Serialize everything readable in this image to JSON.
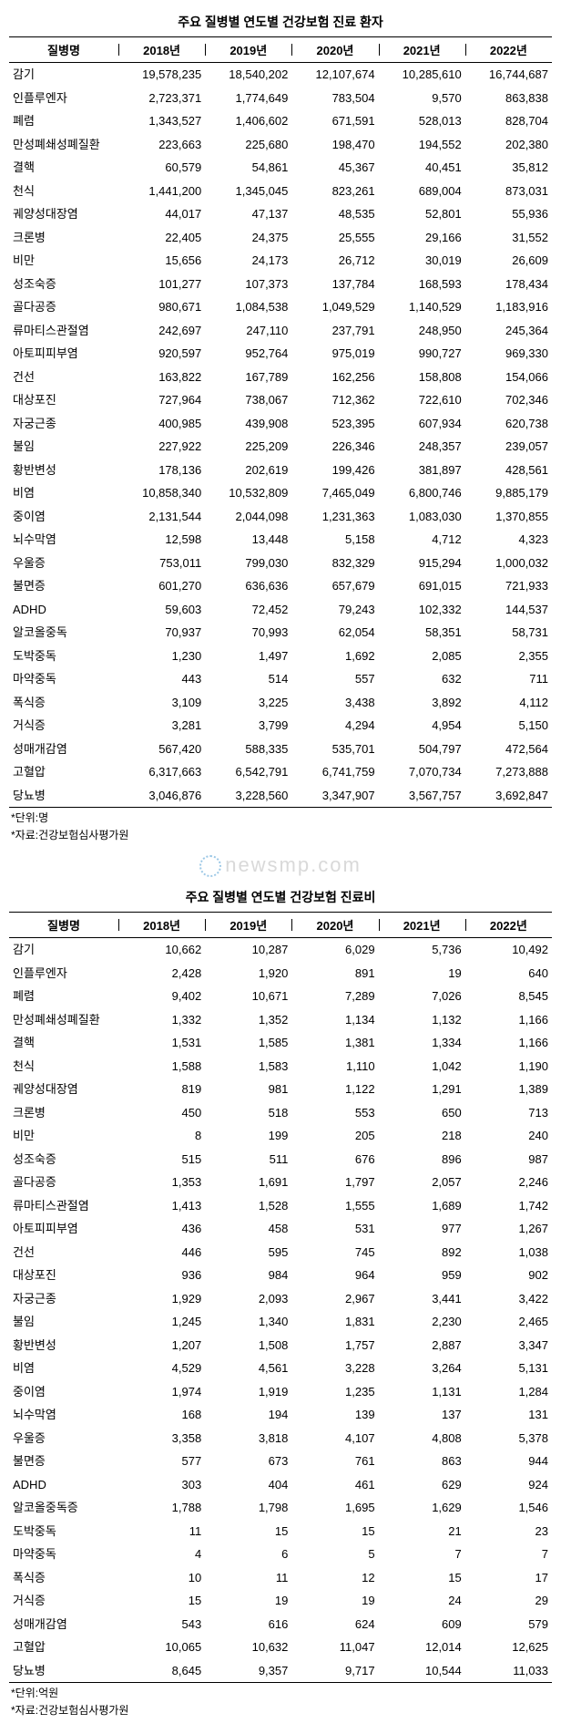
{
  "watermark_text": "newsmp.com",
  "table1": {
    "title": "주요 질병별 연도별 건강보험 진료 환자",
    "columns": [
      "질병명",
      "2018년",
      "2019년",
      "2020년",
      "2021년",
      "2022년"
    ],
    "col_widths": [
      "120px",
      "auto",
      "auto",
      "auto",
      "auto",
      "auto"
    ],
    "header_border_color": "#000000",
    "rows": [
      [
        "감기",
        "19,578,235",
        "18,540,202",
        "12,107,674",
        "10,285,610",
        "16,744,687"
      ],
      [
        "인플루엔자",
        "2,723,371",
        "1,774,649",
        "783,504",
        "9,570",
        "863,838"
      ],
      [
        "폐렴",
        "1,343,527",
        "1,406,602",
        "671,591",
        "528,013",
        "828,704"
      ],
      [
        "만성폐쇄성폐질환",
        "223,663",
        "225,680",
        "198,470",
        "194,552",
        "202,380"
      ],
      [
        "결핵",
        "60,579",
        "54,861",
        "45,367",
        "40,451",
        "35,812"
      ],
      [
        "천식",
        "1,441,200",
        "1,345,045",
        "823,261",
        "689,004",
        "873,031"
      ],
      [
        "궤양성대장염",
        "44,017",
        "47,137",
        "48,535",
        "52,801",
        "55,936"
      ],
      [
        "크론병",
        "22,405",
        "24,375",
        "25,555",
        "29,166",
        "31,552"
      ],
      [
        "비만",
        "15,656",
        "24,173",
        "26,712",
        "30,019",
        "26,609"
      ],
      [
        "성조숙증",
        "101,277",
        "107,373",
        "137,784",
        "168,593",
        "178,434"
      ],
      [
        "골다공증",
        "980,671",
        "1,084,538",
        "1,049,529",
        "1,140,529",
        "1,183,916"
      ],
      [
        "류마티스관절염",
        "242,697",
        "247,110",
        "237,791",
        "248,950",
        "245,364"
      ],
      [
        "아토피피부염",
        "920,597",
        "952,764",
        "975,019",
        "990,727",
        "969,330"
      ],
      [
        "건선",
        "163,822",
        "167,789",
        "162,256",
        "158,808",
        "154,066"
      ],
      [
        "대상포진",
        "727,964",
        "738,067",
        "712,362",
        "722,610",
        "702,346"
      ],
      [
        "자궁근종",
        "400,985",
        "439,908",
        "523,395",
        "607,934",
        "620,738"
      ],
      [
        "불임",
        "227,922",
        "225,209",
        "226,346",
        "248,357",
        "239,057"
      ],
      [
        "황반변성",
        "178,136",
        "202,619",
        "199,426",
        "381,897",
        "428,561"
      ],
      [
        "비염",
        "10,858,340",
        "10,532,809",
        "7,465,049",
        "6,800,746",
        "9,885,179"
      ],
      [
        "중이염",
        "2,131,544",
        "2,044,098",
        "1,231,363",
        "1,083,030",
        "1,370,855"
      ],
      [
        "뇌수막염",
        "12,598",
        "13,448",
        "5,158",
        "4,712",
        "4,323"
      ],
      [
        "우울증",
        "753,011",
        "799,030",
        "832,329",
        "915,294",
        "1,000,032"
      ],
      [
        "불면증",
        "601,270",
        "636,636",
        "657,679",
        "691,015",
        "721,933"
      ],
      [
        "ADHD",
        "59,603",
        "72,452",
        "79,243",
        "102,332",
        "144,537"
      ],
      [
        "알코올중독",
        "70,937",
        "70,993",
        "62,054",
        "58,351",
        "58,731"
      ],
      [
        "도박중독",
        "1,230",
        "1,497",
        "1,692",
        "2,085",
        "2,355"
      ],
      [
        "마약중독",
        "443",
        "514",
        "557",
        "632",
        "711"
      ],
      [
        "폭식증",
        "3,109",
        "3,225",
        "3,438",
        "3,892",
        "4,112"
      ],
      [
        "거식증",
        "3,281",
        "3,799",
        "4,294",
        "4,954",
        "5,150"
      ],
      [
        "성매개감염",
        "567,420",
        "588,335",
        "535,701",
        "504,797",
        "472,564"
      ],
      [
        "고혈압",
        "6,317,663",
        "6,542,791",
        "6,741,759",
        "7,070,734",
        "7,273,888"
      ],
      [
        "당뇨병",
        "3,046,876",
        "3,228,560",
        "3,347,907",
        "3,567,757",
        "3,692,847"
      ]
    ],
    "footnotes": [
      "*단위:명",
      "*자료:건강보험심사평가원"
    ]
  },
  "table2": {
    "title": "주요 질병별 연도별 건강보험 진료비",
    "columns": [
      "질병명",
      "2018년",
      "2019년",
      "2020년",
      "2021년",
      "2022년"
    ],
    "rows": [
      [
        "감기",
        "10,662",
        "10,287",
        "6,029",
        "5,736",
        "10,492"
      ],
      [
        "인플루엔자",
        "2,428",
        "1,920",
        "891",
        "19",
        "640"
      ],
      [
        "폐렴",
        "9,402",
        "10,671",
        "7,289",
        "7,026",
        "8,545"
      ],
      [
        "만성폐쇄성폐질환",
        "1,332",
        "1,352",
        "1,134",
        "1,132",
        "1,166"
      ],
      [
        "결핵",
        "1,531",
        "1,585",
        "1,381",
        "1,334",
        "1,166"
      ],
      [
        "천식",
        "1,588",
        "1,583",
        "1,110",
        "1,042",
        "1,190"
      ],
      [
        "궤양성대장염",
        "819",
        "981",
        "1,122",
        "1,291",
        "1,389"
      ],
      [
        "크론병",
        "450",
        "518",
        "553",
        "650",
        "713"
      ],
      [
        "비만",
        "8",
        "199",
        "205",
        "218",
        "240"
      ],
      [
        "성조숙증",
        "515",
        "511",
        "676",
        "896",
        "987"
      ],
      [
        "골다공증",
        "1,353",
        "1,691",
        "1,797",
        "2,057",
        "2,246"
      ],
      [
        "류마티스관절염",
        "1,413",
        "1,528",
        "1,555",
        "1,689",
        "1,742"
      ],
      [
        "아토피피부염",
        "436",
        "458",
        "531",
        "977",
        "1,267"
      ],
      [
        "건선",
        "446",
        "595",
        "745",
        "892",
        "1,038"
      ],
      [
        "대상포진",
        "936",
        "984",
        "964",
        "959",
        "902"
      ],
      [
        "자궁근종",
        "1,929",
        "2,093",
        "2,967",
        "3,441",
        "3,422"
      ],
      [
        "불임",
        "1,245",
        "1,340",
        "1,831",
        "2,230",
        "2,465"
      ],
      [
        "황반변성",
        "1,207",
        "1,508",
        "1,757",
        "2,887",
        "3,347"
      ],
      [
        "비염",
        "4,529",
        "4,561",
        "3,228",
        "3,264",
        "5,131"
      ],
      [
        "중이염",
        "1,974",
        "1,919",
        "1,235",
        "1,131",
        "1,284"
      ],
      [
        "뇌수막염",
        "168",
        "194",
        "139",
        "137",
        "131"
      ],
      [
        "우울증",
        "3,358",
        "3,818",
        "4,107",
        "4,808",
        "5,378"
      ],
      [
        "불면증",
        "577",
        "673",
        "761",
        "863",
        "944"
      ],
      [
        "ADHD",
        "303",
        "404",
        "461",
        "629",
        "924"
      ],
      [
        "알코올중독증",
        "1,788",
        "1,798",
        "1,695",
        "1,629",
        "1,546"
      ],
      [
        "도박중독",
        "11",
        "15",
        "15",
        "21",
        "23"
      ],
      [
        "마약중독",
        "4",
        "6",
        "5",
        "7",
        "7"
      ],
      [
        "폭식증",
        "10",
        "11",
        "12",
        "15",
        "17"
      ],
      [
        "거식증",
        "15",
        "19",
        "19",
        "24",
        "29"
      ],
      [
        "성매개감염",
        "543",
        "616",
        "624",
        "609",
        "579"
      ],
      [
        "고혈압",
        "10,065",
        "10,632",
        "11,047",
        "12,014",
        "12,625"
      ],
      [
        "당뇨병",
        "8,645",
        "9,357",
        "9,717",
        "10,544",
        "11,033"
      ]
    ],
    "footnotes": [
      "*단위:억원",
      "*자료:건강보험심사평가원"
    ]
  }
}
